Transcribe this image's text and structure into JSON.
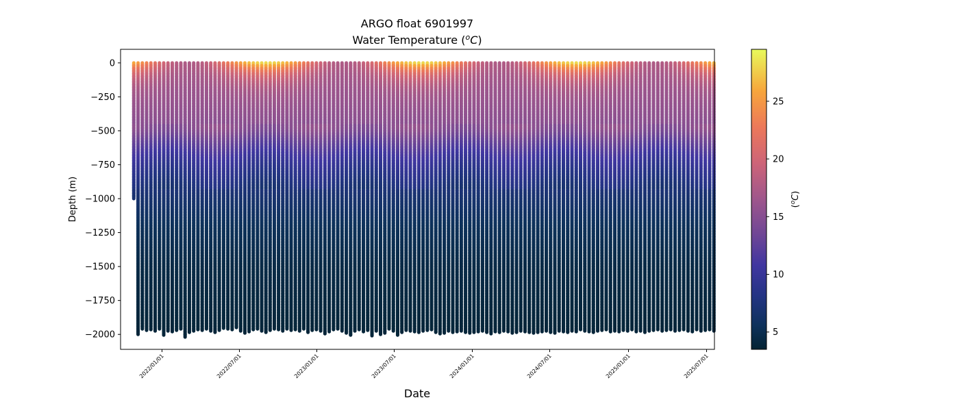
{
  "chart_data": {
    "type": "scatter",
    "title_line1": "ARGO float 6901997",
    "title_line2": "Water Temperature (",
    "title_unit_sup": "o",
    "title_unit_c": "C",
    "title_unit_close": ")",
    "xlabel": "Date",
    "ylabel": "Depth (m)",
    "colorbar_label_open": "(",
    "colorbar_label_sup": "o",
    "colorbar_label_c": "C",
    "colorbar_label_close": ")",
    "x_ticks": [
      "2022/01/01",
      "2022/07/01",
      "2023/01/01",
      "2023/07/01",
      "2024/01/01",
      "2024/07/01",
      "2025/01/01",
      "2025/07/01"
    ],
    "y_ticks": [
      "0",
      "−250",
      "−500",
      "−750",
      "−1000",
      "−1250",
      "−1500",
      "−1750",
      "−2000"
    ],
    "y_tick_values": [
      0,
      -250,
      -500,
      -750,
      -1000,
      -1250,
      -1500,
      -1750,
      -2000
    ],
    "colorbar_ticks": [
      "5",
      "10",
      "15",
      "20",
      "25"
    ],
    "colorbar_tick_values": [
      5,
      10,
      15,
      20,
      25
    ],
    "ylim": [
      -2110,
      100
    ],
    "clim": [
      3.5,
      29.5
    ],
    "profile_interval_days": 10,
    "first_profile_date": "2021-10-27",
    "last_profile_date": "2025-06-03",
    "profile_max_depths": [
      -1000,
      -2000,
      -1960,
      -1970,
      -1965,
      -1975,
      -1960,
      -2005,
      -1975,
      -1980,
      -1970,
      -1960,
      -2020,
      -1985,
      -1975,
      -1965,
      -1970,
      -1960,
      -1975,
      -1985,
      -1970,
      -1955,
      -1960,
      -1965,
      -1950,
      -1975,
      -1990,
      -1980,
      -1965,
      -1960,
      -1975,
      -1985,
      -1970,
      -1960,
      -1965,
      -1975,
      -1960,
      -1970,
      -1965,
      -1975,
      -1960,
      -1985,
      -1970,
      -1965,
      -1975,
      -1995,
      -1980,
      -1965,
      -1960,
      -1975,
      -1990,
      -2005,
      -1975,
      -1965,
      -1980,
      -1970,
      -2010,
      -1975,
      -2000,
      -1990,
      -1960,
      -1975,
      -2005,
      -1985,
      -1970,
      -1975,
      -1980,
      -1985,
      -1975,
      -1970,
      -1965,
      -1985,
      -1995,
      -1990,
      -1975,
      -1985,
      -1980,
      -1975,
      -1985,
      -1990,
      -1985,
      -1980,
      -1975,
      -1985,
      -1995,
      -1980,
      -1985,
      -1975,
      -1980,
      -1990,
      -1985,
      -1975,
      -1980,
      -1985,
      -1990,
      -1985,
      -1980,
      -1975,
      -1985,
      -1990,
      -1975,
      -1980,
      -1985,
      -1975,
      -1980,
      -1965,
      -1975,
      -1980,
      -1985,
      -1975,
      -1970,
      -1965,
      -1980,
      -1975,
      -1980,
      -1970,
      -1975,
      -1965,
      -1980,
      -1975,
      -1985,
      -1975,
      -1970,
      -1965,
      -1975,
      -1970,
      -1965,
      -1975,
      -1970,
      -1965,
      -1975,
      -1980,
      -1965,
      -1975,
      -1970,
      -1965,
      -1975,
      -1980,
      -1965,
      -1970
    ],
    "temperature_profile_model": {
      "depths": [
        0,
        -50,
        -100,
        -200,
        -300,
        -400,
        -500,
        -600,
        -700,
        -800,
        -900,
        -1000,
        -1200,
        -1500,
        -2000
      ],
      "base_temperature": [
        19.5,
        18.5,
        17.5,
        16.5,
        16.0,
        15.5,
        15.0,
        12.5,
        10.5,
        9.0,
        7.8,
        6.8,
        5.5,
        4.5,
        3.8
      ],
      "seasonal_surface_peak": 29.3,
      "seasonal_surface_low": 17.5
    },
    "colormap": "thermal"
  }
}
